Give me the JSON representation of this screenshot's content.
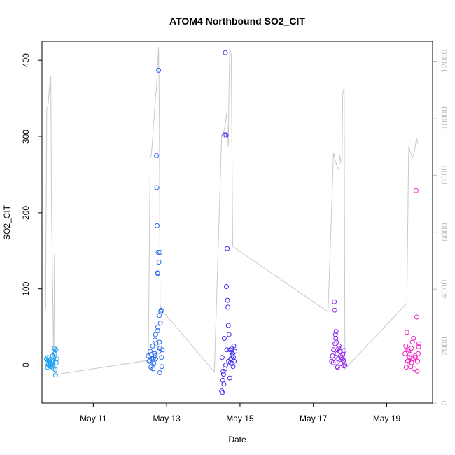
{
  "chart_data": {
    "type": "scatter",
    "title": "ATOM4 Northbound SO2_CIT",
    "xlabel": "Date",
    "ylabel": "SO2_CIT",
    "x_range": [
      9.6,
      20.25
    ],
    "y_range": [
      -50,
      425
    ],
    "y2_range": [
      0,
      12700
    ],
    "x_ticks": [
      {
        "value": 11,
        "label": "May 11"
      },
      {
        "value": 13,
        "label": "May 13"
      },
      {
        "value": 15,
        "label": "May 15"
      },
      {
        "value": 17,
        "label": "May 17"
      },
      {
        "value": 19,
        "label": "May 19"
      }
    ],
    "y_ticks": [
      {
        "value": 0,
        "label": "0"
      },
      {
        "value": 100,
        "label": "100"
      },
      {
        "value": 200,
        "label": "200"
      },
      {
        "value": 300,
        "label": "300"
      },
      {
        "value": 400,
        "label": "400"
      }
    ],
    "y2_ticks": [
      {
        "value": 0,
        "label": "0"
      },
      {
        "value": 2000,
        "label": "2000"
      },
      {
        "value": 4000,
        "label": "4000"
      },
      {
        "value": 6000,
        "label": "6000"
      },
      {
        "value": 8000,
        "label": "8000"
      },
      {
        "value": 10000,
        "label": "10000"
      },
      {
        "value": 12000,
        "label": "12000"
      }
    ],
    "series": [
      {
        "color": "#1ea3f0",
        "points": [
          [
            9.72,
            8
          ],
          [
            9.74,
            3
          ],
          [
            9.75,
            -3
          ],
          [
            9.77,
            6
          ],
          [
            9.78,
            1
          ],
          [
            9.8,
            4
          ],
          [
            9.81,
            -1
          ],
          [
            9.83,
            7
          ],
          [
            9.84,
            2
          ],
          [
            9.86,
            5
          ],
          [
            9.87,
            0
          ],
          [
            9.89,
            12
          ],
          [
            9.9,
            4
          ],
          [
            9.91,
            -4
          ],
          [
            9.92,
            9
          ],
          [
            9.93,
            18
          ],
          [
            9.94,
            22
          ],
          [
            9.95,
            15
          ],
          [
            9.96,
            -6
          ],
          [
            9.97,
            -13
          ],
          [
            9.98,
            20
          ],
          [
            9.99,
            3
          ],
          [
            10.0,
            8
          ],
          [
            9.76,
            10
          ],
          [
            9.85,
            -2
          ],
          [
            9.88,
            6
          ],
          [
            9.82,
            3
          ],
          [
            9.79,
            -1
          ]
        ]
      },
      {
        "color": "#2b6af0",
        "points": [
          [
            12.5,
            12
          ],
          [
            12.52,
            5
          ],
          [
            12.55,
            18
          ],
          [
            12.57,
            -3
          ],
          [
            12.6,
            8
          ],
          [
            12.62,
            25
          ],
          [
            12.65,
            2
          ],
          [
            12.67,
            15
          ],
          [
            12.7,
            40
          ],
          [
            12.72,
            275
          ],
          [
            12.73,
            233
          ],
          [
            12.74,
            183
          ],
          [
            12.75,
            121
          ],
          [
            12.76,
            120
          ],
          [
            12.77,
            148
          ],
          [
            12.78,
            387
          ],
          [
            12.79,
            135
          ],
          [
            12.8,
            65
          ],
          [
            12.82,
            148
          ],
          [
            12.84,
            70
          ],
          [
            12.85,
            72
          ],
          [
            12.83,
            55
          ],
          [
            12.81,
            -10
          ],
          [
            12.86,
            10
          ],
          [
            12.88,
            20
          ],
          [
            12.6,
            -1
          ],
          [
            12.7,
            8
          ],
          [
            12.75,
            45
          ],
          [
            12.8,
            30
          ],
          [
            12.58,
            14
          ],
          [
            12.64,
            9
          ],
          [
            12.68,
            33
          ],
          [
            12.71,
            28
          ],
          [
            12.76,
            50
          ],
          [
            12.79,
            18
          ],
          [
            12.82,
            22
          ],
          [
            12.87,
            -2
          ],
          [
            12.54,
            6
          ],
          [
            12.63,
            -5
          ],
          [
            12.69,
            12
          ]
        ]
      },
      {
        "color": "#3b2ef0",
        "points": [
          [
            14.5,
            -34
          ],
          [
            14.52,
            -36
          ],
          [
            14.53,
            -20
          ],
          [
            14.55,
            -12
          ],
          [
            14.56,
            -25
          ],
          [
            14.57,
            35
          ],
          [
            14.58,
            302
          ],
          [
            14.6,
            410
          ],
          [
            14.62,
            302
          ],
          [
            14.63,
            103
          ],
          [
            14.65,
            153
          ],
          [
            14.66,
            85
          ],
          [
            14.67,
            76
          ],
          [
            14.68,
            52
          ],
          [
            14.7,
            40
          ],
          [
            14.72,
            -17
          ],
          [
            14.73,
            20
          ],
          [
            14.75,
            8
          ],
          [
            14.78,
            12
          ],
          [
            14.8,
            15
          ],
          [
            14.82,
            10
          ],
          [
            14.84,
            5
          ],
          [
            14.86,
            18
          ],
          [
            14.54,
            -8
          ],
          [
            14.59,
            -5
          ],
          [
            14.61,
            0
          ],
          [
            14.64,
            20
          ],
          [
            14.69,
            5
          ],
          [
            14.74,
            3
          ],
          [
            14.77,
            22
          ],
          [
            14.81,
            -2
          ],
          [
            14.83,
            25
          ],
          [
            14.51,
            10
          ],
          [
            14.79,
            2
          ]
        ]
      },
      {
        "color": "#8d1ef0",
        "points": [
          [
            17.5,
            5
          ],
          [
            17.52,
            12
          ],
          [
            17.55,
            20
          ],
          [
            17.57,
            83
          ],
          [
            17.58,
            72
          ],
          [
            17.6,
            40
          ],
          [
            17.62,
            44
          ],
          [
            17.63,
            30
          ],
          [
            17.65,
            15
          ],
          [
            17.67,
            8
          ],
          [
            17.7,
            25
          ],
          [
            17.72,
            18
          ],
          [
            17.75,
            2
          ],
          [
            17.78,
            10
          ],
          [
            17.8,
            14
          ],
          [
            17.82,
            6
          ],
          [
            17.84,
            19
          ],
          [
            17.86,
            0
          ],
          [
            17.54,
            3
          ],
          [
            17.59,
            28
          ],
          [
            17.64,
            -2
          ],
          [
            17.69,
            22
          ],
          [
            17.74,
            12
          ],
          [
            17.79,
            8
          ],
          [
            17.83,
            -1
          ],
          [
            17.61,
            35
          ],
          [
            17.66,
            -3
          ]
        ]
      },
      {
        "color": "#f01ec3",
        "points": [
          [
            19.5,
            15
          ],
          [
            19.52,
            25
          ],
          [
            19.55,
            43
          ],
          [
            19.57,
            5
          ],
          [
            19.6,
            18
          ],
          [
            19.62,
            10
          ],
          [
            19.65,
            -2
          ],
          [
            19.67,
            22
          ],
          [
            19.7,
            30
          ],
          [
            19.72,
            8
          ],
          [
            19.75,
            -5
          ],
          [
            19.77,
            12
          ],
          [
            19.8,
            229
          ],
          [
            19.82,
            63
          ],
          [
            19.84,
            5
          ],
          [
            19.86,
            15
          ],
          [
            19.88,
            28
          ],
          [
            19.53,
            -3
          ],
          [
            19.58,
            20
          ],
          [
            19.63,
            14
          ],
          [
            19.68,
            3
          ],
          [
            19.73,
            35
          ],
          [
            19.78,
            10
          ],
          [
            19.83,
            -8
          ],
          [
            19.87,
            24
          ],
          [
            19.6,
            6
          ]
        ]
      }
    ],
    "line_series": {
      "color": "#c8c8c8",
      "axis": "right",
      "points": [
        [
          9.7,
          3300
        ],
        [
          9.73,
          10300
        ],
        [
          9.76,
          10400
        ],
        [
          9.8,
          11000
        ],
        [
          9.82,
          11300
        ],
        [
          9.84,
          11500
        ],
        [
          9.86,
          7000
        ],
        [
          9.88,
          5000
        ],
        [
          9.9,
          3400
        ],
        [
          9.92,
          1100
        ],
        [
          9.94,
          5200
        ],
        [
          9.96,
          1000
        ],
        [
          12.5,
          1500
        ],
        [
          12.55,
          8600
        ],
        [
          12.58,
          8700
        ],
        [
          12.6,
          9000
        ],
        [
          12.62,
          9300
        ],
        [
          12.64,
          9800
        ],
        [
          12.66,
          10000
        ],
        [
          12.68,
          10500
        ],
        [
          12.7,
          10800
        ],
        [
          12.72,
          11000
        ],
        [
          12.74,
          11500
        ],
        [
          12.76,
          12000
        ],
        [
          12.78,
          12500
        ],
        [
          12.8,
          10000
        ],
        [
          12.82,
          3500
        ],
        [
          12.84,
          3300
        ],
        [
          14.3,
          1100
        ],
        [
          14.5,
          9400
        ],
        [
          14.55,
          9500
        ],
        [
          14.6,
          9800
        ],
        [
          14.62,
          10000
        ],
        [
          14.64,
          10200
        ],
        [
          14.66,
          9500
        ],
        [
          14.68,
          9000
        ],
        [
          14.7,
          11000
        ],
        [
          14.72,
          12500
        ],
        [
          14.76,
          12200
        ],
        [
          14.8,
          5500
        ],
        [
          17.4,
          3200
        ],
        [
          17.55,
          8800
        ],
        [
          17.6,
          8500
        ],
        [
          17.65,
          8300
        ],
        [
          17.7,
          8200
        ],
        [
          17.72,
          8700
        ],
        [
          17.75,
          8500
        ],
        [
          17.78,
          8400
        ],
        [
          17.8,
          10800
        ],
        [
          17.82,
          11000
        ],
        [
          17.84,
          11000
        ],
        [
          17.86,
          1200
        ],
        [
          19.55,
          3500
        ],
        [
          19.6,
          9000
        ],
        [
          19.65,
          8800
        ],
        [
          19.7,
          8600
        ],
        [
          19.75,
          8800
        ],
        [
          19.8,
          9200
        ],
        [
          19.82,
          9300
        ],
        [
          19.84,
          9100
        ]
      ]
    }
  }
}
